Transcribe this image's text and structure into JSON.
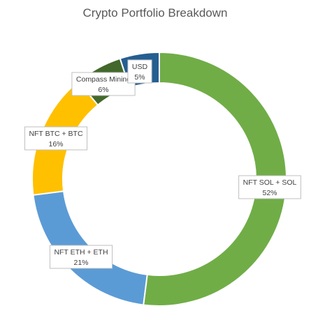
{
  "chart_data": {
    "type": "pie",
    "style": "doughnut",
    "title": "Crypto Portfolio Breakdown",
    "slices": [
      {
        "label": "NFT SOL + SOL",
        "percent_label": "52%",
        "value": 52,
        "color": "#70AD47"
      },
      {
        "label": "NFT ETH + ETH",
        "percent_label": "21%",
        "value": 21,
        "color": "#5B9BD5"
      },
      {
        "label": "NFT BTC + BTC",
        "percent_label": "16%",
        "value": 16,
        "color": "#FFC000"
      },
      {
        "label": "Compass Mining",
        "percent_label": "6%",
        "value": 6,
        "color": "#43682B"
      },
      {
        "label": "USD",
        "percent_label": "5%",
        "value": 5,
        "color": "#255E91"
      }
    ]
  }
}
